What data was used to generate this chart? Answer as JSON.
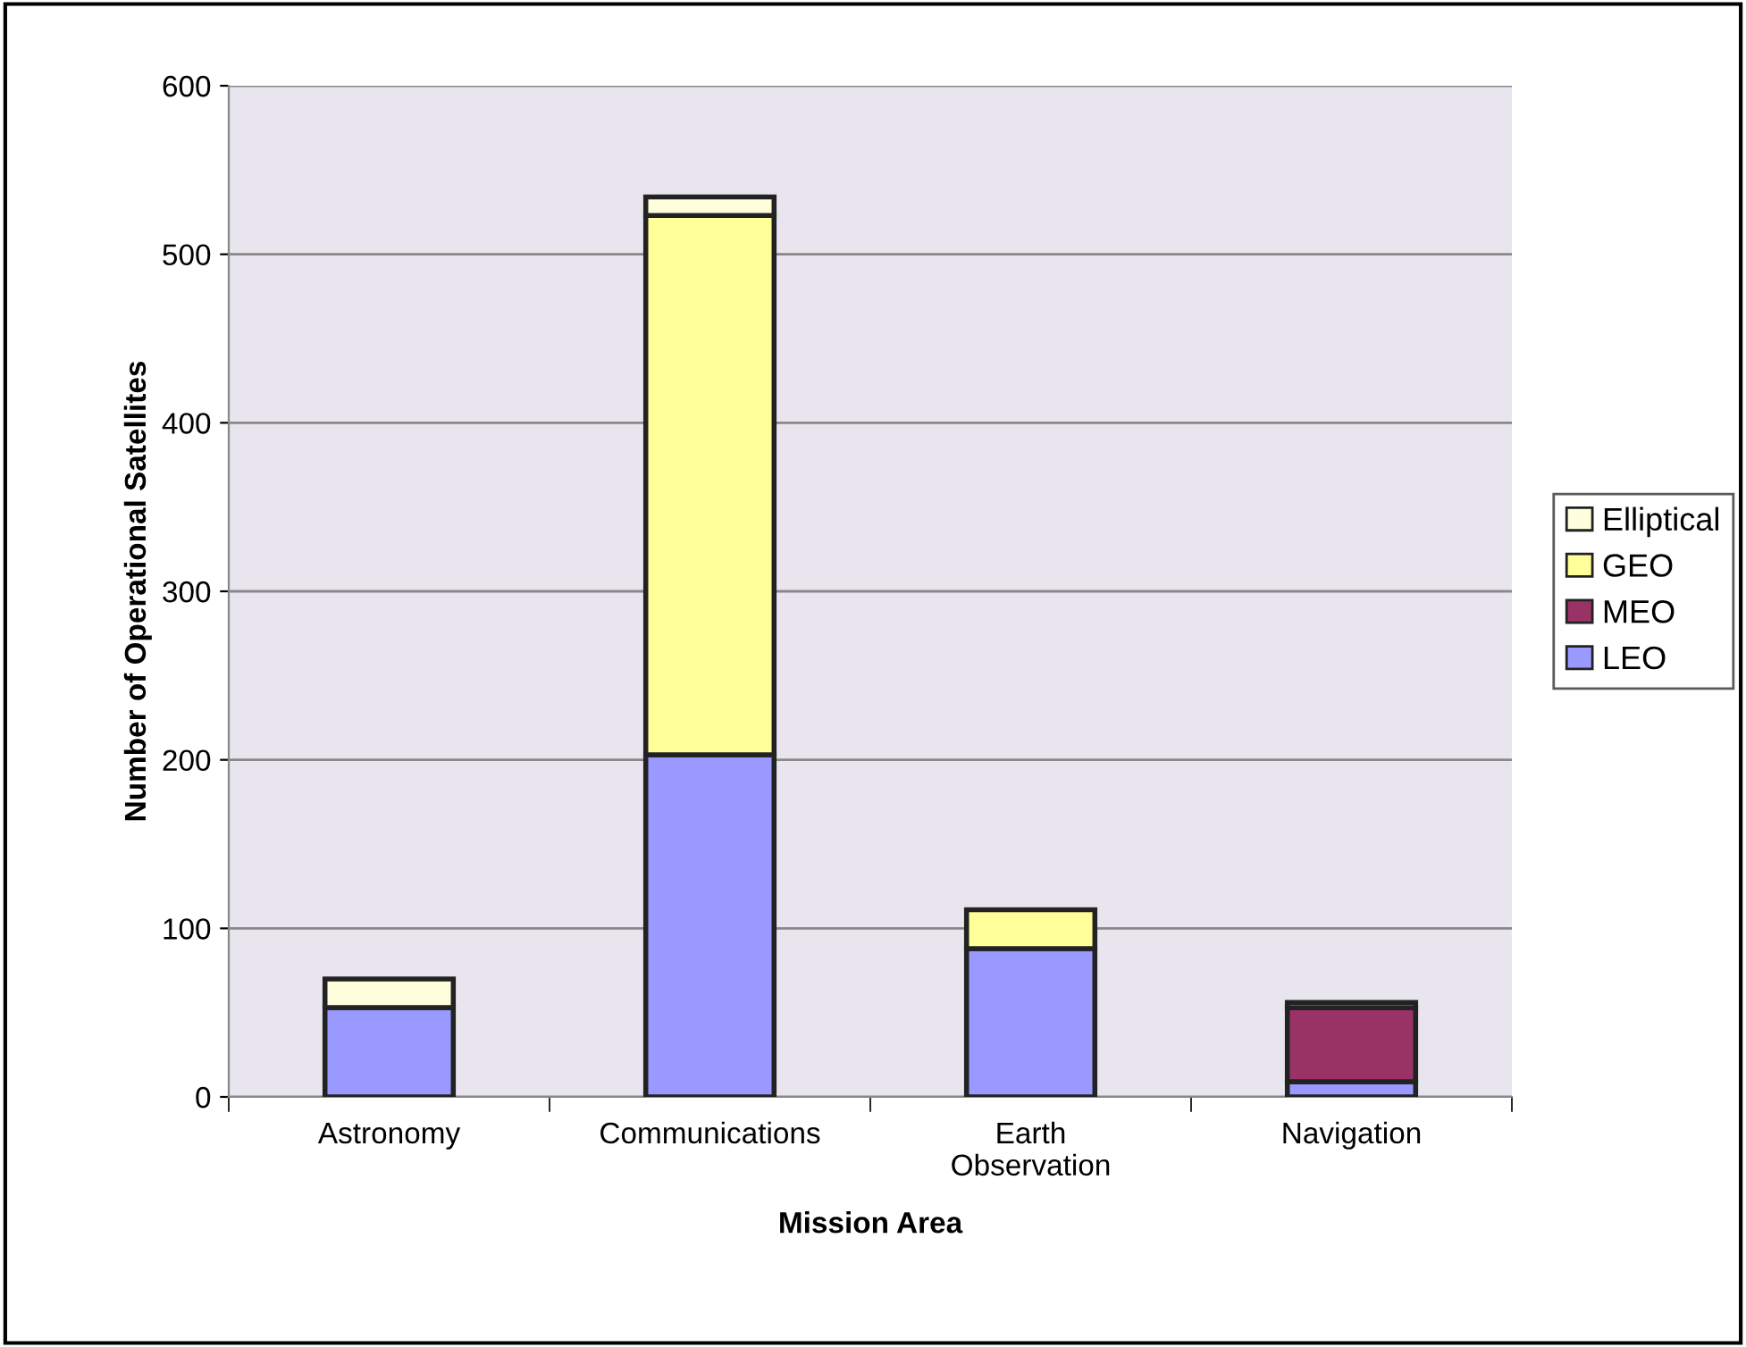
{
  "chart_data": {
    "type": "bar",
    "stacked": true,
    "xlabel": "Mission Area",
    "ylabel": "Number of Operational Satellites",
    "categories": [
      "Astronomy",
      "Communications",
      "Earth\nObservation",
      "Navigation"
    ],
    "series": [
      {
        "name": "LEO",
        "color": "#9999ff",
        "values": [
          53,
          203,
          88,
          9
        ]
      },
      {
        "name": "MEO",
        "color": "#993366",
        "values": [
          null,
          null,
          null,
          44
        ]
      },
      {
        "name": "GEO",
        "color": "#ffff99",
        "values": [
          null,
          320,
          23,
          null
        ]
      },
      {
        "name": "Elliptical",
        "color": "#ffffdd",
        "values": [
          17,
          11,
          null,
          3
        ]
      }
    ],
    "ylim": [
      0,
      600
    ],
    "yticks": [
      0,
      100,
      200,
      300,
      400,
      500,
      600
    ],
    "grid": "y",
    "legend": "right"
  }
}
